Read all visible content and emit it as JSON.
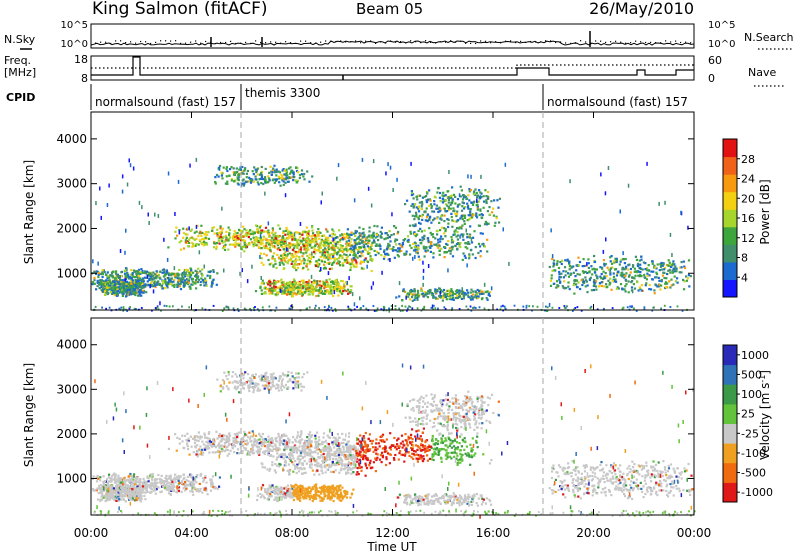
{
  "header": {
    "station": "King Salmon (fitACF)",
    "beam": "Beam 05",
    "date": "26/May/2010"
  },
  "noise_panel": {
    "left_label": "N.Sky",
    "right_label": "N.Search",
    "left_ticks": [
      "10^5",
      "10^0"
    ],
    "right_ticks": [
      "10^5",
      "10^0"
    ]
  },
  "freq_panel": {
    "left_label_1": "Freq.",
    "left_label_2": "[MHz]",
    "right_label": "Nave",
    "left_ticks": [
      "18",
      "8"
    ],
    "right_ticks": [
      "60",
      "0"
    ]
  },
  "cpid": {
    "label": "CPID",
    "segments": [
      {
        "name": "normalsound (fast) 157",
        "start_hour": 0.0
      },
      {
        "name": "themis 3300",
        "start_hour": 6.0
      },
      {
        "name": "normalsound (fast) 157",
        "start_hour": 18.0
      }
    ]
  },
  "time_axis": {
    "title": "Time UT",
    "ticks": [
      "00:00",
      "04:00",
      "08:00",
      "12:00",
      "16:00",
      "20:00",
      "00:00"
    ],
    "range_hours": [
      0,
      24
    ]
  },
  "chart_data": [
    {
      "type": "heatmap",
      "panel": "power",
      "ylabel": "Slant Range [km]",
      "yticks": [
        "1000",
        "2000",
        "3000",
        "4000"
      ],
      "ylim": [
        180,
        4600
      ],
      "colorbar_label": "Power [dB]",
      "colorbar_ticks": [
        "28",
        "24",
        "20",
        "16",
        "12",
        "8",
        "4"
      ],
      "colors": [
        "#1515ff",
        "#1b6ad0",
        "#3f8f6c",
        "#3ca53c",
        "#a6d52c",
        "#f3d012",
        "#f79a10",
        "#f0621a",
        "#e21212"
      ]
    },
    {
      "type": "heatmap",
      "panel": "velocity",
      "ylabel": "Slant Range [km]",
      "yticks": [
        "1000",
        "2000",
        "3000",
        "4000"
      ],
      "ylim": [
        180,
        4600
      ],
      "colorbar_label": "Velocity [m s^-1]",
      "colorbar_ticks": [
        "1000",
        "500",
        "100",
        "25",
        "-25",
        "-100",
        "-500",
        "-1000"
      ],
      "colors": [
        "#2a2ab8",
        "#2f72b8",
        "#3a9a48",
        "#62c43a",
        "#c8c8c8",
        "#f0a020",
        "#f06a10",
        "#e01818"
      ]
    }
  ]
}
